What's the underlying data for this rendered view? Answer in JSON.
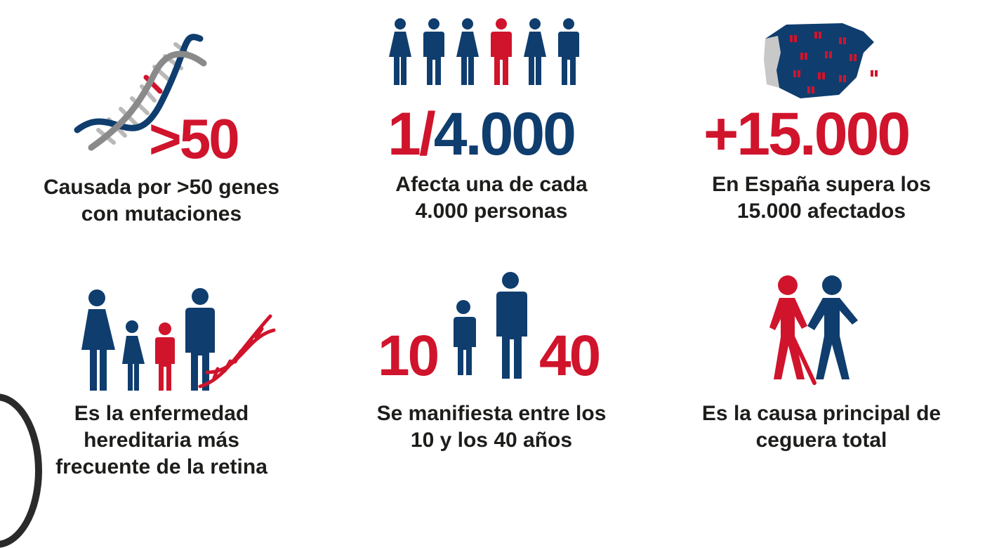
{
  "colors": {
    "red": "#d0142c",
    "navy": "#0f3d6e",
    "text": "#1d1d1b",
    "grey": "#b9b9b9"
  },
  "stats": [
    {
      "icon": "dna-icon",
      "value": ">50",
      "caption": [
        "Causada por >50 genes",
        "con mutaciones"
      ]
    },
    {
      "icon": "population-icon",
      "value_part1": "1/",
      "value_part2": "4.000",
      "caption": [
        "Afecta una de cada",
        "4.000 personas"
      ]
    },
    {
      "icon": "spain-map-icon",
      "value": "+15.000",
      "caption": [
        "En España supera los",
        "15.000 afectados"
      ]
    },
    {
      "icon": "family-dna-icon",
      "caption": [
        "Es la enfermedad",
        "hereditaria más",
        "frecuente de la retina"
      ]
    },
    {
      "icon": "age-figures-icon",
      "age_from": "10",
      "age_to": "40",
      "caption": [
        "Se manifiesta entre los",
        "10 y los 40 años"
      ]
    },
    {
      "icon": "blind-person-guide-icon",
      "caption": [
        "Es la causa principal de",
        "ceguera total"
      ]
    }
  ]
}
